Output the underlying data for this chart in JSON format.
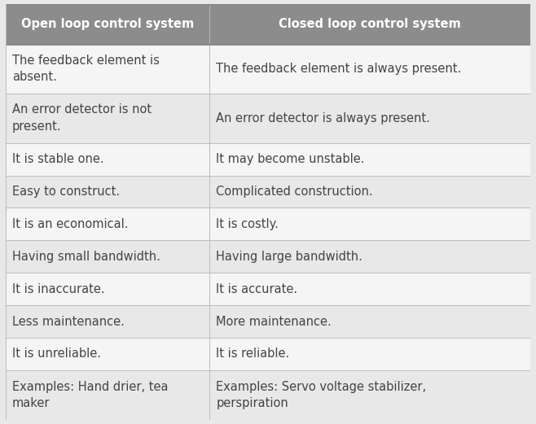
{
  "header": [
    "Open loop control system",
    "Closed loop control system"
  ],
  "rows": [
    [
      "The feedback element is\nabsent.",
      "The feedback element is always present."
    ],
    [
      "An error detector is not\npresent.",
      "An error detector is always present."
    ],
    [
      "It is stable one.",
      "It may become unstable."
    ],
    [
      "Easy to construct.",
      "Complicated construction."
    ],
    [
      "It is an economical.",
      "It is costly."
    ],
    [
      "Having small bandwidth.",
      "Having large bandwidth."
    ],
    [
      "It is inaccurate.",
      "It is accurate."
    ],
    [
      "Less maintenance.",
      "More maintenance."
    ],
    [
      "It is unreliable.",
      "It is reliable."
    ],
    [
      "Examples: Hand drier, tea\nmaker",
      "Examples: Servo voltage stabilizer,\nperspiration"
    ]
  ],
  "header_bg": "#8c8c8c",
  "header_text_color": "#ffffff",
  "row_bg_white": "#f5f5f5",
  "row_bg_gray": "#e8e8e8",
  "cell_text_color": "#444444",
  "border_color": "#bbbbbb",
  "col_split": 0.388,
  "header_fontsize": 10.5,
  "cell_fontsize": 10.5,
  "fig_width": 6.58,
  "fig_height": 5.21,
  "fig_bg": "#e8e8e8"
}
